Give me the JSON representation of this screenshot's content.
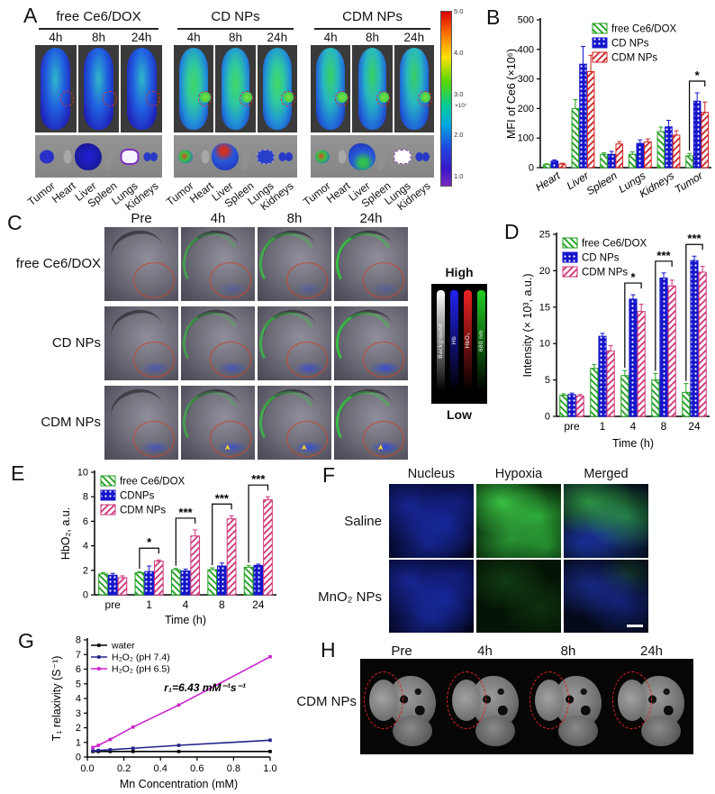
{
  "panels": {
    "A": {
      "label": "A",
      "groups": [
        {
          "name": "free Ce6/DOX",
          "times": [
            "4h",
            "8h",
            "24h"
          ]
        },
        {
          "name": "CD NPs",
          "times": [
            "4h",
            "8h",
            "24h"
          ]
        },
        {
          "name": "CDM NPs",
          "times": [
            "4h",
            "8h",
            "24h"
          ]
        }
      ],
      "organ_labels": [
        "Tumor",
        "Heart",
        "Liver",
        "Spleen",
        "Lungs",
        "Kidneys"
      ],
      "colorbar": {
        "ticks": [
          "5.0",
          "4.0",
          "3.0",
          "2.0",
          "1.0"
        ],
        "scale": "×10⁷"
      }
    },
    "B": {
      "label": "B"
    },
    "C": {
      "label": "C",
      "col_headers": [
        "Pre",
        "4h",
        "8h",
        "24h"
      ],
      "row_labels": [
        "free Ce6/DOX",
        "CD NPs",
        "CDM NPs"
      ],
      "legend": {
        "high": "High",
        "low": "Low",
        "bars": [
          {
            "label": "Background",
            "color": "#ffffff"
          },
          {
            "label": "Hb",
            "color": "#2222ee"
          },
          {
            "label": "HbO₂",
            "color": "#ee2222"
          },
          {
            "label": "680 nm",
            "color": "#22cc22"
          }
        ]
      }
    },
    "D": {
      "label": "D"
    },
    "E": {
      "label": "E"
    },
    "F": {
      "label": "F",
      "col_headers": [
        "Nucleus",
        "Hypoxia",
        "Merged"
      ],
      "row_labels": [
        "Saline",
        "MnO₂ NPs"
      ]
    },
    "G": {
      "label": "G"
    },
    "H": {
      "label": "H",
      "col_headers": [
        "Pre",
        "4h",
        "8h",
        "24h"
      ],
      "row_label": "CDM NPs"
    }
  },
  "chart_data": [
    {
      "id": "chartB",
      "type": "bar",
      "panel": "B",
      "categories": [
        "Heart",
        "Liver",
        "Spleen",
        "Lungs",
        "Kidneys",
        "Tumor"
      ],
      "series": [
        {
          "name": "free Ce6/DOX",
          "values": [
            10,
            200,
            45,
            45,
            122,
            40
          ],
          "errors": [
            3,
            30,
            5,
            8,
            15,
            8
          ],
          "color": "#1e9e1e",
          "pattern": "hatch"
        },
        {
          "name": "CD NPs",
          "values": [
            22,
            350,
            45,
            82,
            138,
            225
          ],
          "errors": [
            4,
            60,
            10,
            12,
            22,
            28
          ],
          "color": "#1515cc",
          "pattern": "dots"
        },
        {
          "name": "CDM NPs",
          "values": [
            12,
            325,
            80,
            87,
            110,
            187
          ],
          "errors": [
            3,
            55,
            8,
            10,
            15,
            35
          ],
          "color": "#cc2222",
          "pattern": "hatch"
        }
      ],
      "ylabel": "MFI of Ce6 (×10⁶)",
      "ylim": [
        0,
        500
      ],
      "yticks": [
        0,
        100,
        200,
        300,
        400,
        500
      ],
      "sig": [
        {
          "category": "Tumor",
          "label": "*"
        }
      ],
      "legend_pos": "tr",
      "grid": false
    },
    {
      "id": "chartD",
      "type": "bar",
      "panel": "D",
      "categories": [
        "pre",
        "1",
        "4",
        "8",
        "24"
      ],
      "series": [
        {
          "name": "free Ce6/DOX",
          "values": [
            2.9,
            6.6,
            5.6,
            5.0,
            3.3
          ],
          "errors": [
            0.2,
            0.5,
            0.7,
            0.9,
            1.2
          ],
          "color": "#1e9e1e",
          "pattern": "hatch"
        },
        {
          "name": "CD NPs",
          "values": [
            3.0,
            11.0,
            16.1,
            19.0,
            21.4
          ],
          "errors": [
            0.2,
            0.4,
            0.6,
            0.7,
            0.6
          ],
          "color": "#1515cc",
          "pattern": "dots"
        },
        {
          "name": "CDM NPs",
          "values": [
            2.8,
            9.0,
            14.4,
            17.9,
            19.8
          ],
          "errors": [
            0.2,
            0.7,
            1.0,
            0.8,
            0.8
          ],
          "color": "#cc3377",
          "pattern": "hatch"
        }
      ],
      "ylabel": "Intensity (× 10³, a.u.)",
      "xlabel": "Time (h)",
      "ylim": [
        0,
        25
      ],
      "yticks": [
        0,
        5,
        10,
        15,
        20,
        25
      ],
      "sig": [
        {
          "category": "4",
          "label": "*"
        },
        {
          "category": "8",
          "label": "***"
        },
        {
          "category": "24",
          "label": "***"
        }
      ],
      "legend_pos": "tl",
      "grid": false
    },
    {
      "id": "chartE",
      "type": "bar",
      "panel": "E",
      "categories": [
        "pre",
        "1",
        "4",
        "8",
        "24"
      ],
      "series": [
        {
          "name": "free Ce6/DOX",
          "values": [
            1.7,
            1.8,
            2.05,
            2.05,
            2.25
          ],
          "errors": [
            0.1,
            0.1,
            0.1,
            0.15,
            0.15
          ],
          "color": "#1e9e1e",
          "pattern": "hatch"
        },
        {
          "name": "CDNPs",
          "values": [
            1.6,
            1.9,
            1.95,
            2.35,
            2.4
          ],
          "errors": [
            0.15,
            0.45,
            0.15,
            0.25,
            0.1
          ],
          "color": "#1515cc",
          "pattern": "dots"
        },
        {
          "name": "CDM NPs",
          "values": [
            1.4,
            2.75,
            4.8,
            6.2,
            7.75
          ],
          "errors": [
            0.15,
            0.1,
            0.5,
            0.25,
            0.25
          ],
          "color": "#cc3377",
          "pattern": "hatch"
        }
      ],
      "ylabel": "HbO₂, a.u.",
      "xlabel": "Time (h)",
      "ylim": [
        0,
        10
      ],
      "yticks": [
        0,
        2,
        4,
        6,
        8,
        10
      ],
      "sig": [
        {
          "category": "1",
          "label": "*"
        },
        {
          "category": "4",
          "label": "***"
        },
        {
          "category": "8",
          "label": "***"
        },
        {
          "category": "24",
          "label": "***"
        }
      ],
      "legend_pos": "tl",
      "grid": false
    },
    {
      "id": "chartG",
      "type": "line",
      "panel": "G",
      "x": [
        0.03,
        0.06,
        0.125,
        0.25,
        0.5,
        1.0
      ],
      "series": [
        {
          "name": "water",
          "values": [
            0.38,
            0.38,
            0.38,
            0.38,
            0.38,
            0.38
          ],
          "color": "#000000"
        },
        {
          "name": "H₂O₂ (pH 7.4)",
          "values": [
            0.42,
            0.45,
            0.5,
            0.6,
            0.8,
            1.15
          ],
          "color": "#22228a"
        },
        {
          "name": "H₂O₂ (pH 6.5)",
          "values": [
            0.65,
            0.8,
            1.2,
            2.05,
            3.55,
            6.85
          ],
          "color": "#cc22cc"
        }
      ],
      "ylabel": "T₁ relaxivity (S⁻¹)",
      "xlabel": "Mn Concentration (mM)",
      "ylim": [
        0,
        8
      ],
      "yticks": [
        0,
        1,
        2,
        3,
        4,
        5,
        6,
        7,
        8
      ],
      "xlim": [
        0,
        1.0
      ],
      "xticks": [
        0.0,
        0.2,
        0.4,
        0.6,
        0.8,
        1.0
      ],
      "annotation": "r₁=6.43 mM⁻¹s⁻¹",
      "annotation_at": [
        0.42,
        4.5
      ],
      "legend_pos": "tl",
      "grid": false
    }
  ]
}
